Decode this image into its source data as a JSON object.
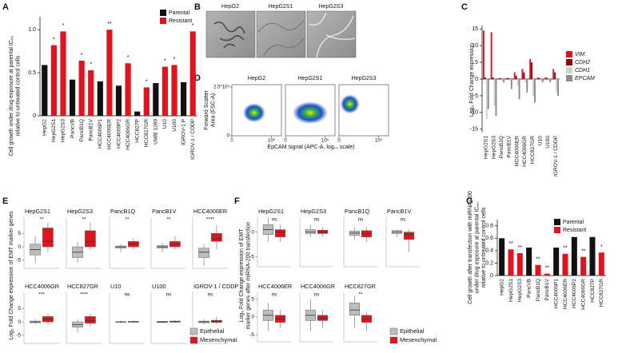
{
  "panel_labels": [
    "A",
    "B",
    "C",
    "D",
    "E",
    "F",
    "G"
  ],
  "micrographs": {
    "titles": [
      "HepG2",
      "HepG2S1",
      "HepG2S3"
    ]
  },
  "chart_data": [
    {
      "type": "bar",
      "ylabel": [
        "Cell growth under drug exposure at parental IC₅₀",
        "relative to untreated control cells"
      ],
      "categories": [
        "HepG2",
        "HepG2S1",
        "HepG2S3",
        "PancVB",
        "PancB1Q",
        "PancB1V",
        "HCC4006P1",
        "HCC4006ER",
        "HCC4006P2",
        "HCC4006GR",
        "HCC827P",
        "HCC827GR",
        "UWB 1289",
        "U10",
        "U100",
        "IGROV-1 P",
        "IGROV-1 / CDDP"
      ],
      "series": [
        {
          "name": "Parental",
          "color": "#111111",
          "values": [
            0.59,
            null,
            null,
            0.42,
            null,
            null,
            0.4,
            null,
            0.35,
            null,
            0.05,
            null,
            0.38,
            null,
            null,
            0.39,
            null
          ]
        },
        {
          "name": "Resistant",
          "color": "#e0141e",
          "values": [
            null,
            0.82,
            0.98,
            null,
            0.64,
            0.53,
            null,
            1.0,
            null,
            0.61,
            null,
            0.33,
            null,
            0.57,
            0.59,
            null,
            0.98
          ]
        }
      ],
      "significance": [
        null,
        "*",
        "*",
        null,
        "*",
        "*",
        null,
        "**",
        null,
        "*",
        null,
        "*",
        null,
        "*",
        "*",
        null,
        "*"
      ],
      "ylim": [
        0,
        1.15
      ],
      "yticks": [
        0,
        0.5,
        {
          "value": 1,
          "label": "1.0"
        }
      ]
    },
    {
      "type": "grouped-bar",
      "ylabel": [
        "Log₂ Fold Change expression"
      ],
      "categories": [
        "HepG2S1",
        "HepG2S3",
        "PancB1Q",
        "PancB1V",
        "HCC4006ER",
        "HCC4006GR",
        "HCC827GR",
        "U10",
        "U100",
        "IGROV-1 / CDDP"
      ],
      "series": [
        {
          "name": "VIM",
          "color": "#e0141e",
          "values": [
            14.5,
            14,
            0.2,
            0.3,
            2,
            3,
            6,
            0.5,
            0.5,
            3
          ]
        },
        {
          "name": "CDH2",
          "color": "#8b0a0a",
          "values": [
            0.5,
            0.5,
            0.3,
            0.3,
            1,
            2,
            5,
            0.3,
            0.3,
            2
          ]
        },
        {
          "name": "CDH1",
          "color": "#d0d0d0",
          "values": [
            -12,
            -8,
            -0.5,
            -0.5,
            -2,
            -1,
            -5,
            -0.5,
            -0.5,
            -4
          ]
        },
        {
          "name": "EPCAM",
          "color": "#8c8c8c",
          "values": [
            -9,
            -11,
            -1,
            -3,
            -6,
            -4,
            -7,
            -1,
            -1,
            -5
          ]
        }
      ],
      "ylim": [
        -16,
        16
      ],
      "yticks": [
        -15,
        -10,
        -5,
        0,
        5,
        10,
        15
      ]
    },
    {
      "type": "density",
      "panels": [
        "HepG2",
        "HepG2S1",
        "HepG2S3"
      ],
      "ylabel": [
        "Forward Scatter",
        "Area (FSC-A)"
      ],
      "xlabel": "EpCAM signal (APC-A, log₁₀ scale)",
      "ylim": [
        0,
        262144
      ],
      "yticks": [
        0,
        {
          "value": 250000,
          "label": "2.5*10⁵"
        }
      ],
      "xlim": [
        0,
        125000
      ],
      "xticks": [
        0,
        {
          "value": 100000,
          "label": "10⁵"
        }
      ]
    },
    {
      "type": "boxplot",
      "ylabel": [
        "Log₂ Fold Change expression of EMT marker genes"
      ],
      "series": [
        {
          "name": "Epithelial",
          "color": "#bdbdbd"
        },
        {
          "name": "Mesenchymal",
          "color": "#e0141e"
        }
      ],
      "panels": [
        {
          "title": "HepG2S1",
          "significance": "**",
          "ylim": [
            -8,
            11
          ],
          "yticks": [
            -5,
            0,
            5
          ],
          "stats": [
            [
              -6,
              -3,
              -1,
              1,
              4
            ],
            [
              -2,
              0,
              2,
              7,
              9
            ]
          ]
        },
        {
          "title": "HepG2S3",
          "significance": "**",
          "ylim": [
            -8,
            11
          ],
          "stats": [
            [
              -6,
              -4,
              -2,
              0,
              2
            ],
            [
              -1,
              0,
              2,
              6,
              9
            ]
          ]
        },
        {
          "title": "PancB1Q",
          "significance": "**",
          "ylim": [
            -8,
            11
          ],
          "stats": [
            [
              -2,
              -0.5,
              0,
              0.3,
              1
            ],
            [
              -1,
              0,
              1,
              2,
              3
            ]
          ]
        },
        {
          "title": "PancB1V",
          "significance": "**",
          "ylim": [
            -8,
            11
          ],
          "stats": [
            [
              -2,
              -0.5,
              0,
              0.5,
              1.5
            ],
            [
              -1,
              0,
              1,
              2,
              4
            ]
          ]
        },
        {
          "title": "HCC4006ER",
          "significance": "****",
          "ylim": [
            -8,
            11
          ],
          "stats": [
            [
              -7,
              -4,
              -2,
              -0.5,
              1
            ],
            [
              -1,
              2,
              3,
              5,
              8
            ]
          ]
        },
        {
          "title": "HCC4006GR",
          "significance": "***",
          "ylim": [
            -8,
            11
          ],
          "yticks": [
            -5,
            0,
            5
          ],
          "stats": [
            [
              -1,
              -0.3,
              0,
              0.3,
              1
            ],
            [
              -1,
              0,
              1,
              2,
              3
            ]
          ]
        },
        {
          "title": "HCC827GR",
          "significance": "****",
          "ylim": [
            -8,
            11
          ],
          "stats": [
            [
              -4,
              -2,
              -1,
              0,
              1
            ],
            [
              -2,
              -0.5,
              0.5,
              2,
              3
            ]
          ]
        },
        {
          "title": "U10",
          "significance": "ns",
          "ylim": [
            -8,
            11
          ],
          "stats": [
            [
              -0.5,
              -0.1,
              0,
              0.1,
              0.5
            ],
            [
              -0.5,
              -0.1,
              0,
              0.2,
              0.5
            ]
          ]
        },
        {
          "title": "U100",
          "significance": "ns",
          "ylim": [
            -8,
            11
          ],
          "stats": [
            [
              -0.5,
              -0.2,
              0,
              0.2,
              0.5
            ],
            [
              -0.5,
              -0.1,
              0.1,
              0.3,
              0.7
            ]
          ]
        },
        {
          "title": "IGROV-1 / CDDP",
          "significance": "ns",
          "ylim": [
            -8,
            11
          ],
          "stats": [
            [
              -1,
              -0.3,
              0,
              0.3,
              1
            ],
            [
              -1,
              -0.2,
              0.3,
              0.6,
              2
            ]
          ]
        }
      ]
    },
    {
      "type": "boxplot",
      "ylabel": [
        "Log₂ Fold Change expression of EMT",
        "marker genes after miRNA-200 transfection"
      ],
      "series": [
        {
          "name": "Epithelial",
          "color": "#bdbdbd"
        },
        {
          "name": "Mesenchymal",
          "color": "#e0141e"
        }
      ],
      "panels": [
        {
          "title": "HepG2S1",
          "significance": "ns",
          "ylim": [
            -7,
            3
          ],
          "yticks": [
            -5,
            0
          ],
          "stats": [
            [
              -2,
              -0.5,
              0.5,
              1.5,
              3
            ],
            [
              -2,
              -1,
              0,
              0.5,
              1.5
            ]
          ]
        },
        {
          "title": "HepG2S3",
          "significance": "ns",
          "ylim": [
            -7,
            3
          ],
          "stats": [
            [
              -1,
              -0.3,
              0,
              0.5,
              1.5
            ],
            [
              -1,
              -0.3,
              0,
              0.4,
              1
            ]
          ]
        },
        {
          "title": "PancB1Q",
          "significance": "ns",
          "ylim": [
            -7,
            3
          ],
          "stats": [
            [
              -1.5,
              -0.7,
              -0.2,
              0.2,
              1
            ],
            [
              -2,
              -1,
              -0.3,
              0.3,
              1
            ]
          ]
        },
        {
          "title": "PancB1V",
          "significance": "ns",
          "ylim": [
            -7,
            3
          ],
          "stats": [
            [
              -1,
              -0.3,
              0,
              0.3,
              0.5
            ],
            [
              -4,
              -1.5,
              -0.5,
              0,
              0.5
            ]
          ]
        },
        {
          "title": "HCC4006ER",
          "significance": "ns",
          "ylim": [
            -7,
            7
          ],
          "yticks": [
            -5,
            0,
            5
          ],
          "stats": [
            [
              -4,
              -1,
              0.5,
              2,
              4
            ],
            [
              -3,
              -1.5,
              -0.5,
              0.5,
              2
            ]
          ]
        },
        {
          "title": "HCC4006GR",
          "significance": "ns",
          "ylim": [
            -7,
            7
          ],
          "stats": [
            [
              -4,
              -1,
              0.5,
              2,
              5
            ],
            [
              -3,
              -1,
              -0.3,
              0.5,
              2
            ]
          ]
        },
        {
          "title": "HCC827GR",
          "significance": "**",
          "ylim": [
            -7,
            7
          ],
          "stats": [
            [
              -3,
              0.5,
              2,
              4,
              6
            ],
            [
              -4,
              -1.5,
              -0.5,
              0.5,
              1.5
            ]
          ]
        }
      ]
    },
    {
      "type": "bar",
      "ylabel": [
        "Cell growth after transfection with miRNA-200",
        "under drug exposure at parental IC₅₀",
        "relative to untreated control cells"
      ],
      "categories": [
        "HepG2",
        "HepG2S1",
        "HepG2S3",
        "PancVB",
        "PancB1Q",
        "PancB1V",
        "HCC4006P1",
        "HCC4006ER",
        "HCC4006P2",
        "HCC4006GR",
        "HCC827P",
        "HCC827GR"
      ],
      "series": [
        {
          "name": "Parental",
          "color": "#111111",
          "values": [
            0.6,
            null,
            null,
            0.45,
            null,
            null,
            0.45,
            null,
            0.62,
            null,
            0.62,
            null
          ]
        },
        {
          "name": "Resistant",
          "color": "#e0141e",
          "values": [
            null,
            0.42,
            0.36,
            null,
            0.17,
            0.03,
            null,
            0.35,
            null,
            0.3,
            null,
            0.37
          ]
        }
      ],
      "significance": [
        null,
        "**",
        "**",
        null,
        "**",
        "**",
        null,
        "**",
        null,
        "**",
        null,
        "*"
      ],
      "ylim": [
        0,
        0.9
      ],
      "yticks": [
        0,
        0.2,
        0.4,
        0.6,
        0.8
      ]
    }
  ]
}
